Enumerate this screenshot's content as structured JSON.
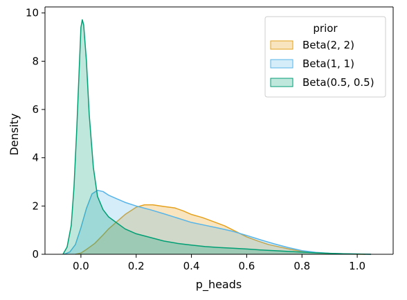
{
  "chart_data": {
    "type": "area",
    "xlabel": "p_heads",
    "ylabel": "Density",
    "xlim": [
      -0.13,
      1.13
    ],
    "ylim": [
      0,
      10.25
    ],
    "xticks": [
      "0.0",
      "0.2",
      "0.4",
      "0.6",
      "0.8",
      "1.0"
    ],
    "yticks": [
      "0",
      "2",
      "4",
      "6",
      "8",
      "10"
    ],
    "grid": false,
    "legend": {
      "title": "prior",
      "placement": "top-right"
    },
    "series": [
      {
        "name": "Beta(2, 2)",
        "stroke": "#e5a11c",
        "fill": "#e5a11c",
        "fill_opacity": 0.28,
        "x": [
          -0.02,
          0.0,
          0.02,
          0.05,
          0.08,
          0.1,
          0.13,
          0.16,
          0.2,
          0.23,
          0.26,
          0.3,
          0.34,
          0.37,
          0.4,
          0.44,
          0.48,
          0.52,
          0.56,
          0.6,
          0.64,
          0.68,
          0.72,
          0.76,
          0.8,
          0.85,
          0.9,
          0.95,
          1.0,
          1.03
        ],
        "y": [
          0.0,
          0.05,
          0.2,
          0.45,
          0.8,
          1.05,
          1.35,
          1.65,
          1.95,
          2.05,
          2.05,
          1.98,
          1.92,
          1.8,
          1.65,
          1.52,
          1.35,
          1.18,
          0.95,
          0.72,
          0.55,
          0.4,
          0.3,
          0.2,
          0.12,
          0.06,
          0.03,
          0.01,
          0.005,
          0.0
        ]
      },
      {
        "name": "Beta(1, 1)",
        "stroke": "#56b4e9",
        "fill": "#56b4e9",
        "fill_opacity": 0.25,
        "x": [
          -0.06,
          -0.04,
          -0.02,
          0.0,
          0.02,
          0.04,
          0.06,
          0.08,
          0.1,
          0.13,
          0.16,
          0.2,
          0.25,
          0.3,
          0.35,
          0.4,
          0.45,
          0.5,
          0.55,
          0.6,
          0.65,
          0.7,
          0.75,
          0.8,
          0.85,
          0.9,
          0.95,
          1.0,
          1.05
        ],
        "y": [
          0.0,
          0.1,
          0.4,
          1.1,
          1.9,
          2.5,
          2.65,
          2.6,
          2.45,
          2.3,
          2.15,
          2.0,
          1.85,
          1.68,
          1.5,
          1.32,
          1.2,
          1.08,
          0.95,
          0.78,
          0.6,
          0.43,
          0.28,
          0.15,
          0.08,
          0.04,
          0.02,
          0.01,
          0.0
        ]
      },
      {
        "name": "Beta(0.5, 0.5)",
        "stroke": "#009e73",
        "fill": "#009e73",
        "fill_opacity": 0.25,
        "x": [
          -0.065,
          -0.05,
          -0.035,
          -0.025,
          -0.015,
          -0.005,
          0.0,
          0.005,
          0.01,
          0.02,
          0.03,
          0.045,
          0.06,
          0.08,
          0.1,
          0.13,
          0.16,
          0.2,
          0.25,
          0.3,
          0.35,
          0.4,
          0.45,
          0.5,
          0.55,
          0.6,
          0.65,
          0.7,
          0.75,
          0.8,
          0.85,
          0.9,
          0.95,
          1.0,
          1.05
        ],
        "y": [
          0.0,
          0.3,
          1.2,
          2.8,
          5.2,
          8.0,
          9.4,
          9.72,
          9.5,
          8.0,
          5.8,
          3.6,
          2.4,
          1.85,
          1.55,
          1.3,
          1.05,
          0.85,
          0.7,
          0.55,
          0.45,
          0.38,
          0.32,
          0.28,
          0.25,
          0.22,
          0.18,
          0.15,
          0.12,
          0.09,
          0.06,
          0.04,
          0.02,
          0.01,
          0.0
        ]
      }
    ]
  }
}
